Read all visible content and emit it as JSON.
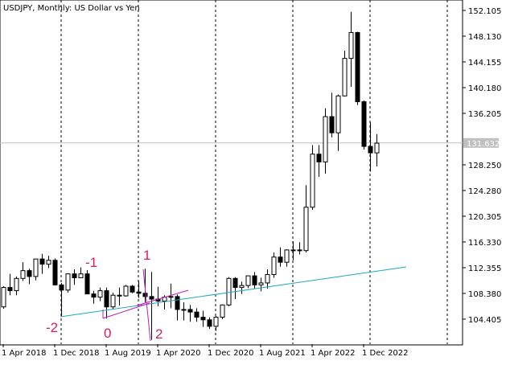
{
  "chart_data": {
    "type": "candlestick",
    "title": "USDJPY, Monthly:  US Dollar vs Yen",
    "x": [
      "2018-04-01",
      "2018-05-01",
      "2018-06-01",
      "2018-07-01",
      "2018-08-01",
      "2018-09-01",
      "2018-10-01",
      "2018-11-01",
      "2018-12-01",
      "2019-01-01",
      "2019-02-01",
      "2019-03-01",
      "2019-04-01",
      "2019-05-01",
      "2019-06-01",
      "2019-07-01",
      "2019-08-01",
      "2019-09-01",
      "2019-10-01",
      "2019-11-01",
      "2019-12-01",
      "2020-01-01",
      "2020-02-01",
      "2020-03-01",
      "2020-04-01",
      "2020-05-01",
      "2020-06-01",
      "2020-07-01",
      "2020-08-01",
      "2020-09-01",
      "2020-10-01",
      "2020-11-01",
      "2020-12-01",
      "2021-01-01",
      "2021-02-01",
      "2021-03-01",
      "2021-04-01",
      "2021-05-01",
      "2021-06-01",
      "2021-07-01",
      "2021-08-01",
      "2021-09-01",
      "2021-10-01",
      "2021-11-01",
      "2021-12-01",
      "2022-01-01",
      "2022-02-01",
      "2022-03-01",
      "2022-04-01",
      "2022-05-01",
      "2022-06-01",
      "2022-07-01",
      "2022-08-01",
      "2022-09-01",
      "2022-10-01",
      "2022-11-01",
      "2022-12-01",
      "2023-01-01",
      "2023-02-01"
    ],
    "open": [
      106.3,
      109.3,
      108.8,
      110.7,
      111.9,
      111.0,
      113.7,
      112.9,
      113.5,
      109.7,
      108.9,
      111.4,
      110.8,
      111.4,
      108.3,
      107.8,
      108.8,
      106.3,
      108.1,
      108.0,
      109.5,
      108.6,
      108.4,
      107.9,
      107.5,
      107.2,
      107.8,
      107.9,
      105.9,
      105.9,
      105.5,
      104.7,
      104.3,
      103.3,
      104.7,
      106.6,
      110.7,
      109.3,
      109.6,
      111.1,
      109.7,
      110.0,
      111.3,
      114.0,
      113.2,
      115.1,
      115.1,
      115.0,
      121.7,
      129.9,
      128.7,
      135.7,
      133.2,
      138.9,
      144.7,
      148.7,
      138.0,
      131.1,
      130.1
    ],
    "high": [
      109.5,
      111.4,
      111.0,
      113.2,
      112.2,
      113.7,
      114.5,
      114.2,
      113.8,
      110.0,
      111.5,
      112.1,
      112.4,
      112.0,
      108.8,
      109.3,
      109.3,
      108.5,
      109.3,
      109.7,
      109.7,
      110.3,
      112.2,
      111.7,
      109.4,
      108.1,
      109.9,
      108.2,
      107.0,
      106.6,
      106.1,
      105.7,
      104.7,
      104.9,
      106.7,
      110.9,
      110.9,
      110.2,
      111.1,
      111.7,
      110.8,
      112.1,
      114.7,
      115.5,
      115.2,
      116.4,
      116.3,
      125.1,
      131.3,
      131.3,
      137.0,
      139.4,
      139.1,
      145.9,
      151.9,
      148.8,
      138.2,
      134.8,
      133.0
    ],
    "low": [
      106.0,
      108.1,
      108.1,
      110.3,
      109.8,
      110.4,
      111.4,
      112.3,
      109.6,
      104.8,
      108.5,
      109.7,
      110.8,
      108.3,
      106.8,
      107.2,
      104.5,
      106.0,
      106.5,
      107.9,
      108.4,
      107.7,
      107.0,
      101.2,
      106.4,
      105.9,
      106.1,
      104.2,
      104.2,
      104.0,
      104.0,
      103.2,
      102.9,
      102.6,
      104.4,
      106.4,
      107.5,
      108.3,
      109.2,
      109.1,
      108.7,
      109.1,
      110.8,
      112.5,
      112.5,
      113.5,
      114.4,
      114.7,
      121.3,
      126.4,
      126.9,
      132.5,
      130.4,
      138.8,
      140.3,
      137.5,
      130.6,
      127.2,
      128.0
    ],
    "close": [
      109.3,
      108.8,
      110.7,
      111.9,
      111.0,
      113.7,
      112.9,
      113.5,
      109.7,
      108.9,
      111.4,
      110.8,
      111.4,
      108.3,
      107.8,
      108.8,
      106.3,
      108.1,
      108.0,
      109.5,
      108.6,
      108.4,
      107.9,
      107.5,
      107.2,
      107.8,
      107.9,
      105.9,
      105.9,
      105.5,
      104.7,
      104.3,
      103.3,
      104.7,
      106.6,
      110.7,
      109.3,
      109.6,
      111.1,
      109.7,
      110.0,
      111.3,
      114.0,
      113.2,
      115.1,
      115.1,
      115.0,
      121.7,
      129.9,
      128.7,
      135.7,
      133.2,
      138.9,
      144.7,
      148.7,
      138.0,
      131.1,
      130.1,
      131.6
    ],
    "xticks": [
      {
        "value": "2018-04-01",
        "label": "1 Apr 2018"
      },
      {
        "value": "2018-12-01",
        "label": "1 Dec 2018"
      },
      {
        "value": "2019-08-01",
        "label": "1 Aug 2019"
      },
      {
        "value": "2020-04-01",
        "label": "1 Apr 2020"
      },
      {
        "value": "2020-12-01",
        "label": "1 Dec 2020"
      },
      {
        "value": "2021-08-01",
        "label": "1 Aug 2021"
      },
      {
        "value": "2022-04-01",
        "label": "1 Apr 2022"
      },
      {
        "value": "2022-12-01",
        "label": "1 Dec 2022"
      }
    ],
    "ylim": [
      100.55,
      153.72
    ],
    "yticks": [
      152.105,
      {
        "value": 148.13,
        "label": "148.130"
      },
      144.155,
      {
        "value": 140.18,
        "label": "140.180"
      },
      136.205,
      {
        "value": 128.25,
        "label": "128.250"
      },
      {
        "value": 124.28,
        "label": "124.280"
      },
      120.305,
      {
        "value": 116.33,
        "label": "116.330"
      },
      112.355,
      {
        "value": 108.38,
        "label": "108.380"
      },
      104.405
    ],
    "current_price": 131.632,
    "annotations": [
      "-2",
      "-1",
      "0",
      "1",
      "2"
    ]
  }
}
